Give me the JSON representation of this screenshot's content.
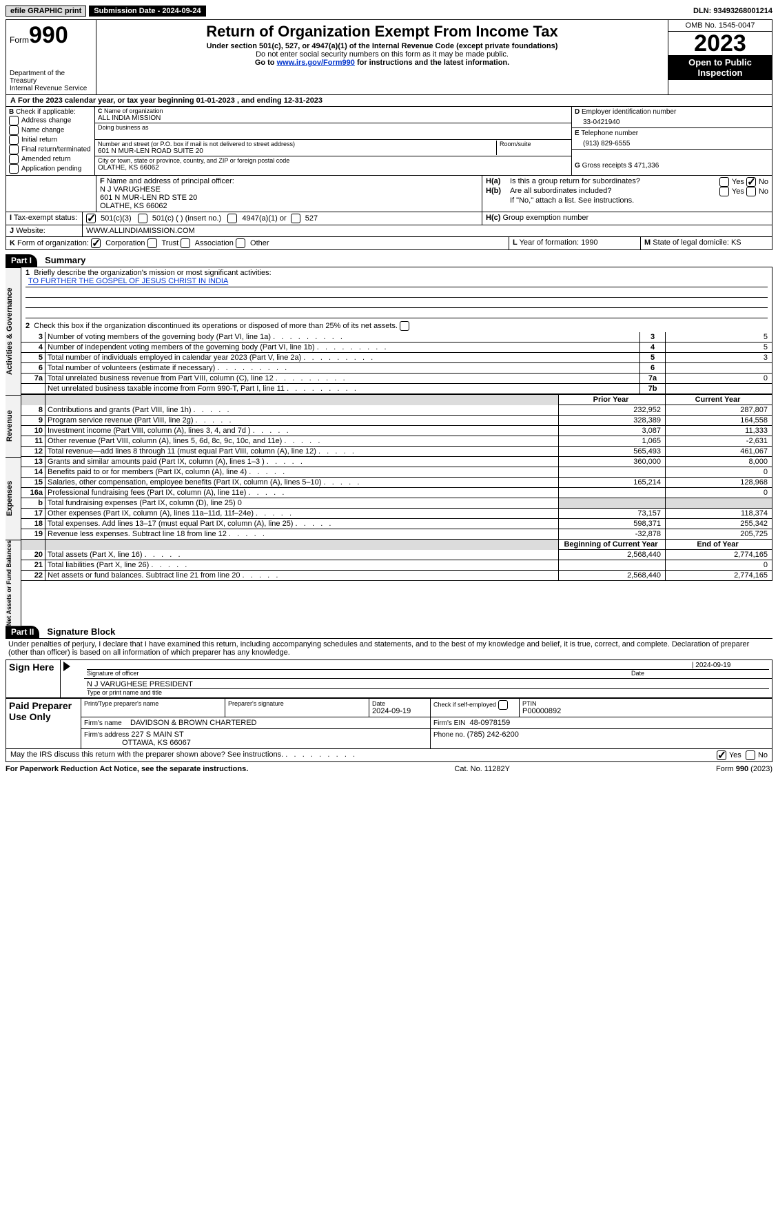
{
  "topbar": {
    "efile": "efile GRAPHIC print",
    "sub_label": "Submission Date - 2024-09-24",
    "dln": "DLN: 93493268001214"
  },
  "header": {
    "form_word": "Form",
    "form_no": "990",
    "dept1": "Department of the Treasury",
    "dept2": "Internal Revenue Service",
    "title": "Return of Organization Exempt From Income Tax",
    "sub1": "Under section 501(c), 527, or 4947(a)(1) of the Internal Revenue Code (except private foundations)",
    "sub2": "Do not enter social security numbers on this form as it may be made public.",
    "sub3a": "Go to ",
    "sub3link": "www.irs.gov/Form990",
    "sub3b": " for instructions and the latest information.",
    "omb": "OMB No. 1545-0047",
    "year": "2023",
    "open": "Open to Public Inspection"
  },
  "A": {
    "text": "For the 2023 calendar year, or tax year beginning 01-01-2023   , and ending 12-31-2023"
  },
  "B": {
    "label": "Check if applicable:",
    "items": [
      "Address change",
      "Name change",
      "Initial return",
      "Final return/terminated",
      "Amended return",
      "Application pending"
    ]
  },
  "C": {
    "name_label": "Name of organization",
    "name": "ALL INDIA MISSION",
    "dba_label": "Doing business as",
    "addr_label": "Number and street (or P.O. box if mail is not delivered to street address)",
    "room_label": "Room/suite",
    "addr": "601 N MUR-LEN ROAD SUITE 20",
    "city_label": "City or town, state or province, country, and ZIP or foreign postal code",
    "city": "OLATHE, KS  66062"
  },
  "D": {
    "label": "Employer identification number",
    "value": "33-0421940"
  },
  "E": {
    "label": "Telephone number",
    "value": "(913) 829-6555"
  },
  "G": {
    "label": "Gross receipts $",
    "value": "471,336"
  },
  "F": {
    "label": "Name and address of principal officer:",
    "l1": "N J VARUGHESE",
    "l2": "601 N MUR-LEN RD STE 20",
    "l3": "OLATHE, KS  66062"
  },
  "H": {
    "a": "Is this a group return for subordinates?",
    "b": "Are all subordinates included?",
    "b2": "If \"No,\" attach a list. See instructions.",
    "c": "Group exemption number"
  },
  "I": {
    "label": "Tax-exempt status:",
    "o1": "501(c)(3)",
    "o2": "501(c) (  ) (insert no.)",
    "o3": "4947(a)(1) or",
    "o4": "527"
  },
  "J": {
    "label": "Website:",
    "value": "WWW.ALLINDIAMISSION.COM"
  },
  "K": {
    "label": "Form of organization:",
    "opts": [
      "Corporation",
      "Trust",
      "Association",
      "Other"
    ]
  },
  "L": {
    "label": "Year of formation:",
    "value": "1990"
  },
  "M": {
    "label": "State of legal domicile:",
    "value": "KS"
  },
  "parts": {
    "p1_num": "Part I",
    "p1_title": "Summary",
    "p2_num": "Part II",
    "p2_title": "Signature Block"
  },
  "summary": {
    "q1": "Briefly describe the organization's mission or most significant activities:",
    "mission": "TO FURTHER THE GOSPEL OF JESUS CHRIST IN INDIA",
    "q2": "Check this box          if the organization discontinued its operations or disposed of more than 25% of its net assets.",
    "rows_gov": [
      {
        "n": "3",
        "t": "Number of voting members of the governing body (Part VI, line 1a)",
        "ref": "3",
        "v": "5"
      },
      {
        "n": "4",
        "t": "Number of independent voting members of the governing body (Part VI, line 1b)",
        "ref": "4",
        "v": "5"
      },
      {
        "n": "5",
        "t": "Total number of individuals employed in calendar year 2023 (Part V, line 2a)",
        "ref": "5",
        "v": "3"
      },
      {
        "n": "6",
        "t": "Total number of volunteers (estimate if necessary)",
        "ref": "6",
        "v": ""
      },
      {
        "n": "7a",
        "t": "Total unrelated business revenue from Part VIII, column (C), line 12",
        "ref": "7a",
        "v": "0"
      },
      {
        "n": "",
        "t": "Net unrelated business taxable income from Form 990-T, Part I, line 11",
        "ref": "7b",
        "v": ""
      }
    ],
    "prior_hdr": "Prior Year",
    "curr_hdr": "Current Year",
    "begin_hdr": "Beginning of Current Year",
    "end_hdr": "End of Year",
    "rows_rev": [
      {
        "n": "8",
        "t": "Contributions and grants (Part VIII, line 1h)",
        "p": "232,952",
        "c": "287,807"
      },
      {
        "n": "9",
        "t": "Program service revenue (Part VIII, line 2g)",
        "p": "328,389",
        "c": "164,558"
      },
      {
        "n": "10",
        "t": "Investment income (Part VIII, column (A), lines 3, 4, and 7d )",
        "p": "3,087",
        "c": "11,333"
      },
      {
        "n": "11",
        "t": "Other revenue (Part VIII, column (A), lines 5, 6d, 8c, 9c, 10c, and 11e)",
        "p": "1,065",
        "c": "-2,631"
      },
      {
        "n": "12",
        "t": "Total revenue—add lines 8 through 11 (must equal Part VIII, column (A), line 12)",
        "p": "565,493",
        "c": "461,067"
      }
    ],
    "rows_exp": [
      {
        "n": "13",
        "t": "Grants and similar amounts paid (Part IX, column (A), lines 1–3 )",
        "p": "360,000",
        "c": "8,000"
      },
      {
        "n": "14",
        "t": "Benefits paid to or for members (Part IX, column (A), line 4)",
        "p": "",
        "c": "0"
      },
      {
        "n": "15",
        "t": "Salaries, other compensation, employee benefits (Part IX, column (A), lines 5–10)",
        "p": "165,214",
        "c": "128,968"
      },
      {
        "n": "16a",
        "t": "Professional fundraising fees (Part IX, column (A), line 11e)",
        "p": "",
        "c": "0"
      },
      {
        "n": "b",
        "t": "Total fundraising expenses (Part IX, column (D), line 25) 0",
        "grey": true
      },
      {
        "n": "17",
        "t": "Other expenses (Part IX, column (A), lines 11a–11d, 11f–24e)",
        "p": "73,157",
        "c": "118,374"
      },
      {
        "n": "18",
        "t": "Total expenses. Add lines 13–17 (must equal Part IX, column (A), line 25)",
        "p": "598,371",
        "c": "255,342"
      },
      {
        "n": "19",
        "t": "Revenue less expenses. Subtract line 18 from line 12",
        "p": "-32,878",
        "c": "205,725"
      }
    ],
    "rows_net": [
      {
        "n": "20",
        "t": "Total assets (Part X, line 16)",
        "p": "2,568,440",
        "c": "2,774,165"
      },
      {
        "n": "21",
        "t": "Total liabilities (Part X, line 26)",
        "p": "",
        "c": "0"
      },
      {
        "n": "22",
        "t": "Net assets or fund balances. Subtract line 21 from line 20",
        "p": "2,568,440",
        "c": "2,774,165"
      }
    ],
    "side_labels": {
      "gov": "Activities & Governance",
      "rev": "Revenue",
      "exp": "Expenses",
      "net": "Net Assets or Fund Balances"
    }
  },
  "sig": {
    "penalty": "Under penalties of perjury, I declare that I have examined this return, including accompanying schedules and statements, and to the best of my knowledge and belief, it is true, correct, and complete. Declaration of preparer (other than officer) is based on all information of which preparer has any knowledge.",
    "sign_here": "Sign Here",
    "date_top": "2024-09-19",
    "sig_officer_label": "Signature of officer",
    "officer": "N J VARUGHESE  PRESIDENT",
    "type_label": "Type or print name and title",
    "date_label": "Date",
    "paid_hdr": "Paid Preparer Use Only",
    "prep_name_label": "Print/Type preparer's name",
    "prep_sig_label": "Preparer's signature",
    "prep_date": "2024-09-19",
    "self_emp": "Check          if self-employed",
    "ptin_label": "PTIN",
    "ptin": "P00000892",
    "firm_label": "Firm's name",
    "firm_name": "DAVIDSON & BROWN CHARTERED",
    "firm_ein_label": "Firm's EIN",
    "firm_ein": "48-0978159",
    "firm_addr_label": "Firm's address",
    "firm_addr1": "227 S MAIN ST",
    "firm_addr2": "OTTAWA, KS  66067",
    "phone_label": "Phone no.",
    "phone": "(785) 242-6200",
    "may_irs": "May the IRS discuss this return with the preparer shown above? See instructions.",
    "yes": "Yes",
    "no": "No"
  },
  "footer": {
    "left": "For Paperwork Reduction Act Notice, see the separate instructions.",
    "mid": "Cat. No. 11282Y",
    "right_a": "Form ",
    "right_b": "990",
    "right_c": " (2023)"
  }
}
